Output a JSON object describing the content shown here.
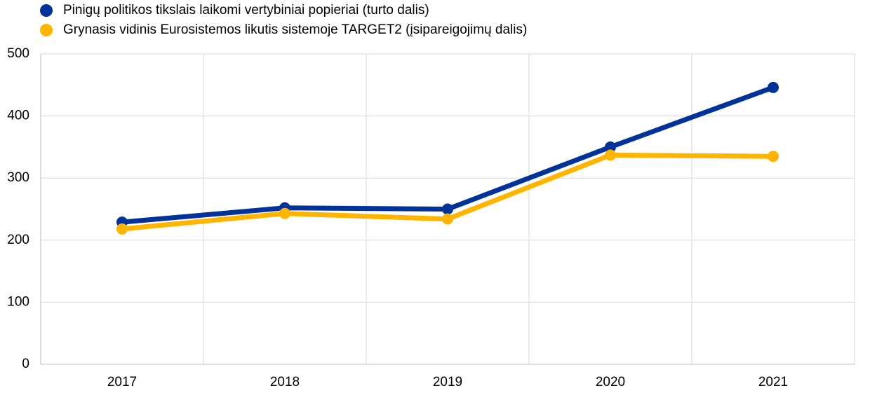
{
  "chart_data": {
    "type": "line",
    "categories": [
      "2017",
      "2018",
      "2019",
      "2020",
      "2021"
    ],
    "series": [
      {
        "name": "Pinigų politikos tikslais laikomi vertybiniai popieriai (turto dalis)",
        "color": "#003299",
        "values": [
          229,
          252,
          250,
          350,
          446
        ]
      },
      {
        "name": "Grynasis vidinis Eurosistemos likutis sistemoje TARGET2 (įsipareigojimų dalis)",
        "color": "#ffb400",
        "values": [
          218,
          243,
          234,
          337,
          335
        ]
      }
    ],
    "ylim": [
      0,
      500
    ],
    "yticks": [
      0,
      100,
      200,
      300,
      400,
      500
    ],
    "grid": true
  }
}
